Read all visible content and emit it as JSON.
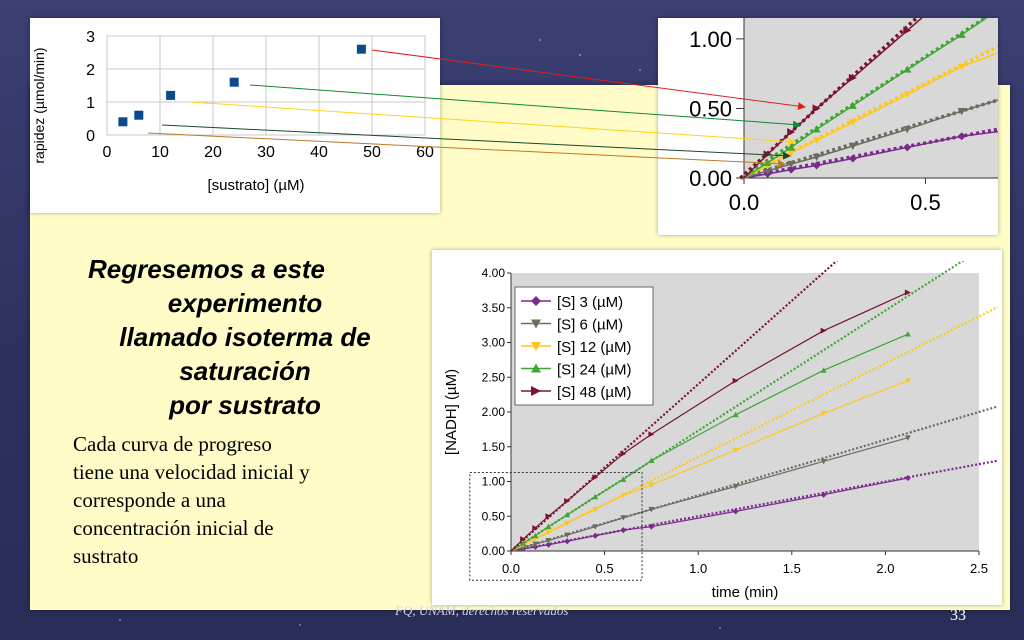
{
  "slide": {
    "heading_lines": [
      "Regresemos a este",
      "experimento",
      "llamado isoterma de",
      "saturación",
      "por sustrato"
    ],
    "body_lines": [
      "Cada curva de progreso",
      "tiene una velocidad inicial y",
      "corresponde a una",
      "concentración inicial de",
      "sustrato"
    ],
    "footer": "FQ, UNAM, derechos reservados",
    "page_number": "33"
  },
  "colors": {
    "s3": "#7b2a8c",
    "s6": "#6b6b60",
    "s12": "#ffc71a",
    "s24": "#3fa535",
    "s48": "#7a1430",
    "marker_blue": "#0d4a8c"
  },
  "chart_data": [
    {
      "type": "scatter",
      "title": "",
      "xlabel": "[sustrato] (µM)",
      "ylabel": "rapidez (µmol/min)",
      "xlim": [
        0,
        60
      ],
      "ylim": [
        0,
        3
      ],
      "xticks": [
        "0",
        "10",
        "20",
        "30",
        "40",
        "50",
        "60"
      ],
      "yticks": [
        "0",
        "1",
        "2",
        "3"
      ],
      "series": [
        {
          "values": [
            [
              3,
              0.4
            ],
            [
              6,
              0.6
            ],
            [
              12,
              1.2
            ],
            [
              24,
              1.6
            ],
            [
              48,
              2.6
            ]
          ]
        }
      ],
      "grid": true
    },
    {
      "type": "line",
      "title": "",
      "xlabel": "time (min)",
      "ylabel": "[NADH] (µM)",
      "xlim": [
        0,
        2.5
      ],
      "ylim": [
        0,
        4
      ],
      "xticks": [
        "0.0",
        "0.5",
        "1.0",
        "1.5",
        "2.0",
        "2.5"
      ],
      "yticks": [
        "0.00",
        "0.50",
        "1.00",
        "1.50",
        "2.00",
        "2.50",
        "3.00",
        "3.50",
        "4.00"
      ],
      "legend": "top-left",
      "series": [
        {
          "name": "[S] 3 (µM)",
          "x": [
            0,
            0.065,
            0.13,
            0.2,
            0.3,
            0.45,
            0.6,
            0.75,
            1.2,
            1.67,
            2.12
          ],
          "y": [
            0,
            0.03,
            0.06,
            0.09,
            0.14,
            0.22,
            0.3,
            0.35,
            0.57,
            0.81,
            1.05
          ],
          "slope": 0.5
        },
        {
          "name": "[S] 6 (µM)",
          "x": [
            0,
            0.065,
            0.13,
            0.2,
            0.3,
            0.45,
            0.6,
            0.75,
            1.2,
            1.67,
            2.12
          ],
          "y": [
            0,
            0.05,
            0.1,
            0.15,
            0.23,
            0.35,
            0.48,
            0.6,
            0.93,
            1.29,
            1.63
          ],
          "slope": 0.8
        },
        {
          "name": "[S] 12 (µM)",
          "x": [
            0,
            0.065,
            0.13,
            0.2,
            0.3,
            0.45,
            0.6,
            0.75,
            1.2,
            1.67,
            2.12
          ],
          "y": [
            0,
            0.09,
            0.18,
            0.27,
            0.4,
            0.6,
            0.8,
            0.95,
            1.45,
            1.98,
            2.45
          ],
          "slope": 1.35
        },
        {
          "name": "[S] 24 (µM)",
          "x": [
            0,
            0.065,
            0.13,
            0.2,
            0.3,
            0.45,
            0.6,
            0.75,
            1.2,
            1.67,
            2.12
          ],
          "y": [
            0,
            0.11,
            0.22,
            0.35,
            0.52,
            0.78,
            1.03,
            1.3,
            1.96,
            2.6,
            3.12
          ],
          "slope": 1.73
        },
        {
          "name": "[S] 48 (µM)",
          "x": [
            0,
            0.065,
            0.13,
            0.2,
            0.3,
            0.45,
            0.6,
            0.75,
            1.2,
            1.67,
            2.12
          ],
          "y": [
            0,
            0.17,
            0.33,
            0.5,
            0.72,
            1.06,
            1.4,
            1.68,
            2.45,
            3.17,
            3.72
          ],
          "slope": 2.4
        }
      ]
    },
    {
      "type": "line",
      "title": "",
      "xlabel": "",
      "ylabel": "",
      "xlim": [
        0,
        0.7
      ],
      "ylim": [
        0,
        1.15
      ],
      "xticks": [
        "0.0",
        "0.5"
      ],
      "yticks": [
        "0.00",
        "0.50",
        "1.00"
      ]
    }
  ]
}
